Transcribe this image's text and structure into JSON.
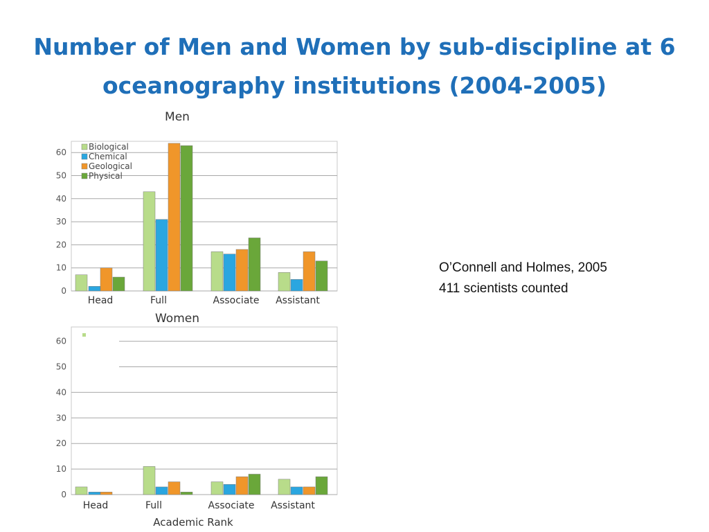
{
  "slide": {
    "title_line1": "Number of Men and Women by sub-discipline at 6",
    "title_line2": "oceanography institutions (2004-2005)",
    "note_line1": "O’Connell and  Holmes, 2005",
    "note_line2": "411 scientists counted"
  },
  "colors": {
    "title": "#1f6fb8",
    "Biological": "#b8dc8a",
    "Chemical": "#2aa6e0",
    "Geological": "#f0962a",
    "Physical": "#6aa73a"
  },
  "chart_data": [
    {
      "type": "bar",
      "title": "Men",
      "categories": [
        "Head",
        "Full",
        "Associate",
        "Assistant"
      ],
      "series": [
        {
          "name": "Biological",
          "values": [
            7,
            43,
            17,
            8
          ]
        },
        {
          "name": "Chemical",
          "values": [
            2,
            31,
            16,
            5
          ]
        },
        {
          "name": "Geological",
          "values": [
            10,
            64,
            18,
            17
          ]
        },
        {
          "name": "Physical",
          "values": [
            6,
            63,
            23,
            13
          ]
        }
      ],
      "ylim": [
        0,
        65
      ],
      "yticks": [
        0,
        10,
        20,
        30,
        40,
        50,
        60
      ],
      "xlabel": "",
      "ylabel": "",
      "legend": "top-left",
      "grid": true
    },
    {
      "type": "bar",
      "title": "Women",
      "categories": [
        "Head",
        "Full",
        "Associate",
        "Assistant"
      ],
      "series": [
        {
          "name": "Biological",
          "values": [
            3,
            11,
            5,
            6
          ]
        },
        {
          "name": "Chemical",
          "values": [
            1,
            3,
            4,
            3
          ]
        },
        {
          "name": "Geological",
          "values": [
            1,
            5,
            7,
            3
          ]
        },
        {
          "name": "Physical",
          "values": [
            0,
            1,
            8,
            7
          ]
        }
      ],
      "ylim": [
        0,
        65
      ],
      "yticks": [
        0,
        10,
        20,
        30,
        40,
        50,
        60
      ],
      "xlabel": "Academic Rank",
      "ylabel": "",
      "grid": true
    }
  ]
}
